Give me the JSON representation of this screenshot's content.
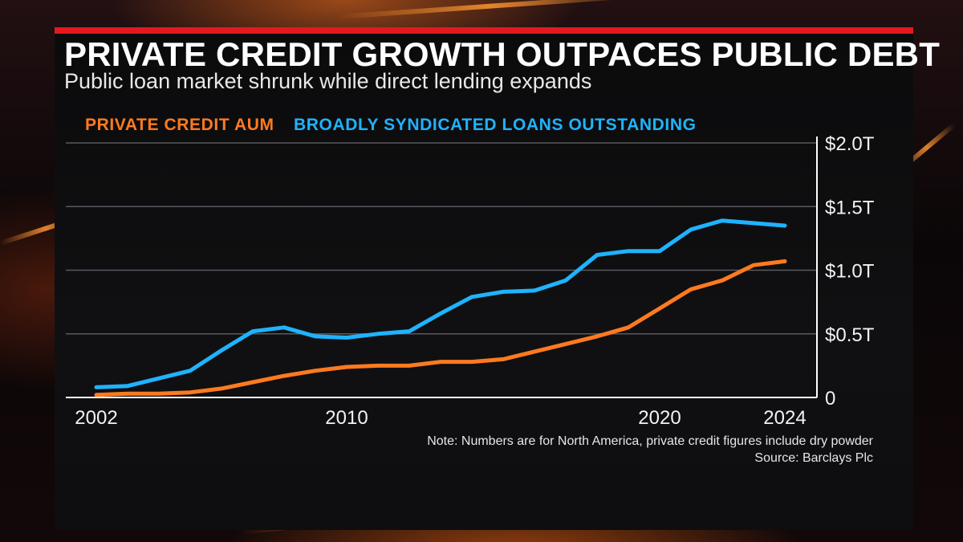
{
  "title": "PRIVATE CREDIT GROWTH OUTPACES PUBLIC DEBT",
  "subtitle": "Public loan market shrunk while direct lending expands",
  "note": "Note: Numbers are for North America, private credit figures include dry powder",
  "source": "Source: Barclays Plc",
  "colors": {
    "accent": "#e4191f",
    "private_credit": "#ff7a1f",
    "bsl": "#1fb3ff"
  },
  "chart_data": {
    "type": "line",
    "x": [
      2002,
      2003,
      2004,
      2005,
      2006,
      2007,
      2008,
      2009,
      2010,
      2011,
      2012,
      2013,
      2014,
      2015,
      2016,
      2017,
      2018,
      2019,
      2020,
      2021,
      2022,
      2023,
      2024
    ],
    "series": [
      {
        "name": "PRIVATE CREDIT AUM",
        "values": [
          0.02,
          0.03,
          0.03,
          0.04,
          0.07,
          0.12,
          0.17,
          0.21,
          0.24,
          0.25,
          0.25,
          0.28,
          0.28,
          0.3,
          0.36,
          0.42,
          0.48,
          0.55,
          0.7,
          0.85,
          0.92,
          1.04,
          1.07
        ]
      },
      {
        "name": "BROADLY SYNDICATED LOANS OUTSTANDING",
        "values": [
          0.08,
          0.09,
          0.15,
          0.21,
          0.37,
          0.52,
          0.55,
          0.48,
          0.47,
          0.5,
          0.52,
          0.66,
          0.79,
          0.83,
          0.84,
          0.92,
          1.12,
          1.15,
          1.15,
          1.32,
          1.39,
          1.37,
          1.35
        ]
      }
    ],
    "x_ticks": [
      "2002",
      "2010",
      "2020",
      "2024"
    ],
    "y_ticks": [
      "0",
      "$0.5T",
      "$1.0T",
      "$1.5T",
      "$2.0T"
    ],
    "ylim": [
      0,
      2.0
    ],
    "xlim": [
      2002,
      2024
    ],
    "grid": true,
    "y_axis_side": "right",
    "legend_placement": "top-left"
  }
}
